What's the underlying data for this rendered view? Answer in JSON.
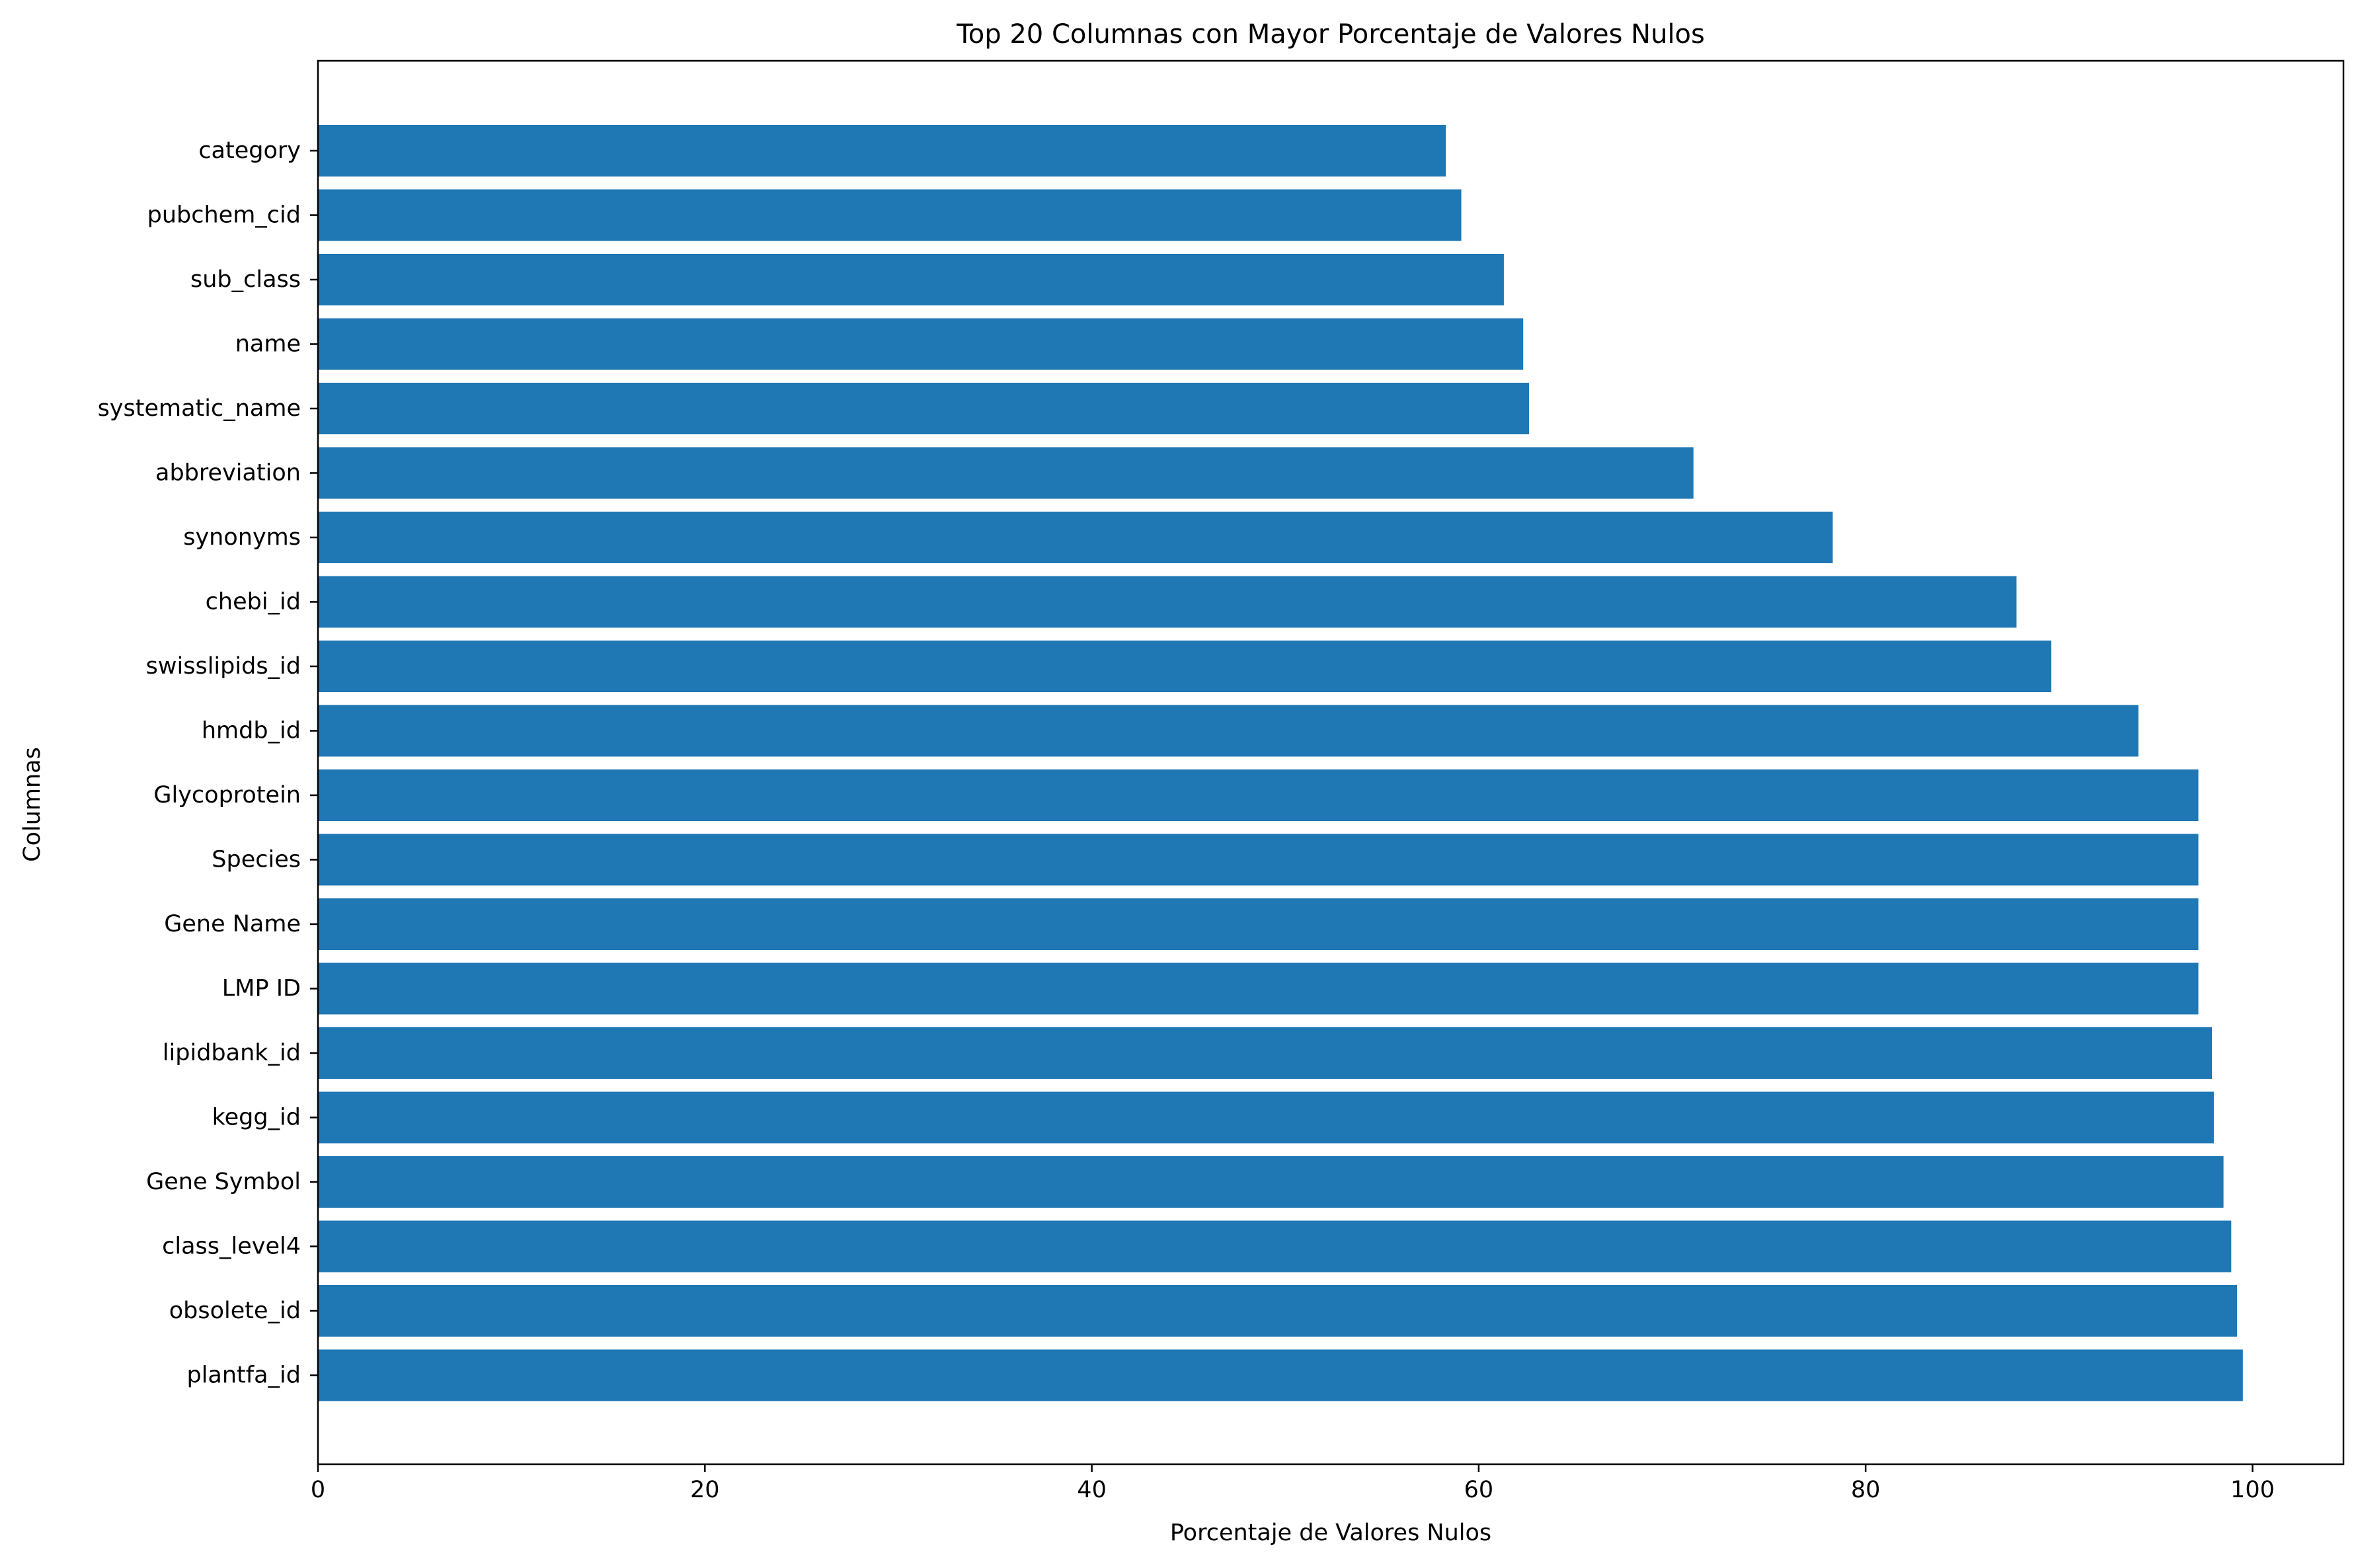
{
  "chart_data": {
    "type": "bar",
    "orientation": "horizontal",
    "title": "Top 20 Columnas con Mayor Porcentaje de Valores Nulos",
    "xlabel": "Porcentaje de Valores Nulos",
    "ylabel": "Columnas",
    "xlim": [
      0,
      104.7
    ],
    "xticks": [
      0,
      20,
      40,
      60,
      80,
      100
    ],
    "grid": false,
    "bar_color": "#1f77b4",
    "categories": [
      "category",
      "pubchem_cid",
      "sub_class",
      "name",
      "systematic_name",
      "abbreviation",
      "synonyms",
      "chebi_id",
      "swisslipids_id",
      "hmdb_id",
      "Glycoprotein",
      "Species",
      "Gene Name",
      "LMP ID",
      "lipidbank_id",
      "kegg_id",
      "Gene Symbol",
      "class_level4",
      "obsolete_id",
      "plantfa_id"
    ],
    "values": [
      58.3,
      59.1,
      61.3,
      62.3,
      62.6,
      71.1,
      78.3,
      87.8,
      89.6,
      94.1,
      97.2,
      97.2,
      97.2,
      97.2,
      97.9,
      98.0,
      98.5,
      98.9,
      99.2,
      99.5
    ]
  }
}
